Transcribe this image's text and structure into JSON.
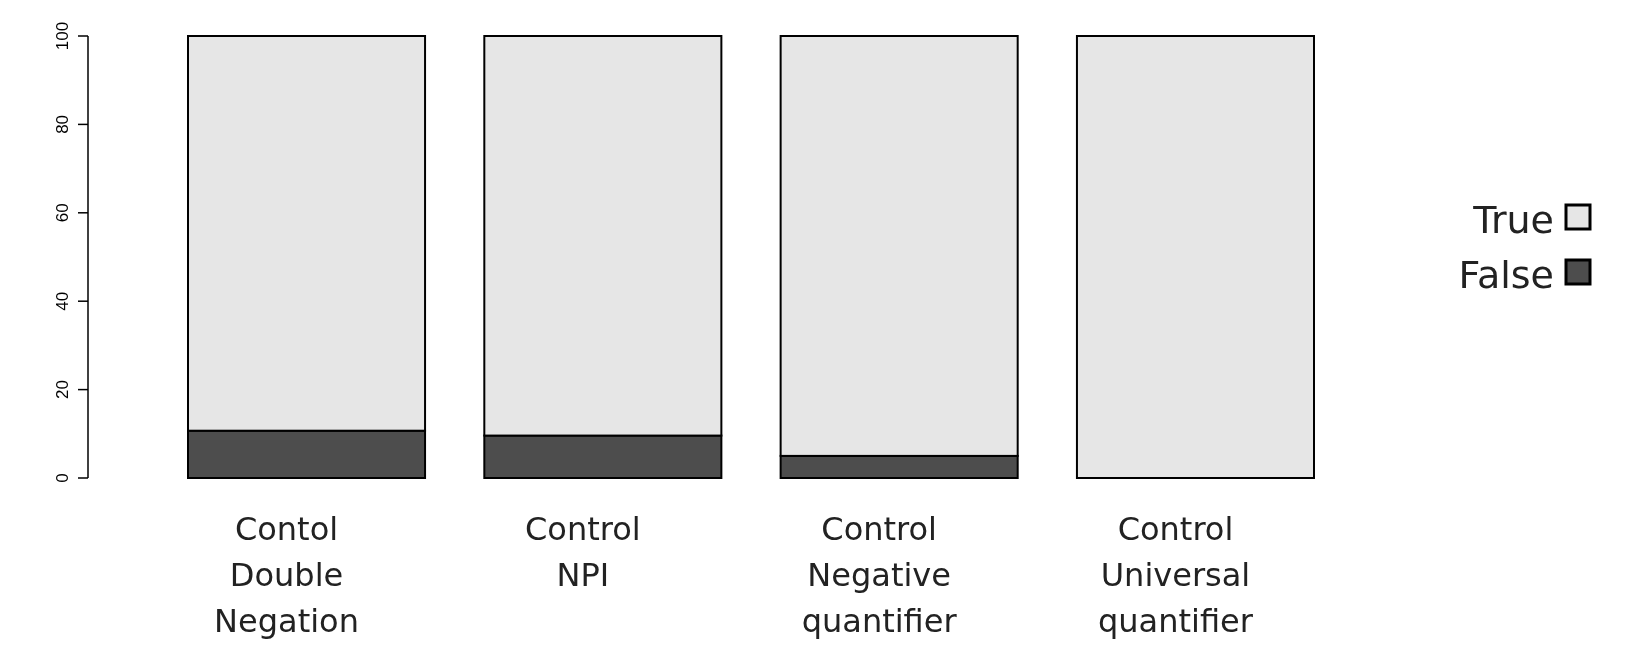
{
  "chart_data": {
    "type": "bar",
    "stacked": true,
    "categories": [
      "Contol Double Negation",
      "Control NPI",
      "Control Negative quantifier",
      "Control Universal quantifier"
    ],
    "series": [
      {
        "name": "False",
        "color": "#4d4d4d",
        "values": [
          10.7,
          9.6,
          5,
          0
        ]
      },
      {
        "name": "True",
        "color": "#e6e6e6",
        "values": [
          89.3,
          90.4,
          95,
          100
        ]
      }
    ],
    "ylim": [
      0,
      100
    ],
    "yticks": [
      0,
      20,
      40,
      60,
      80,
      100
    ],
    "legend": "right"
  }
}
